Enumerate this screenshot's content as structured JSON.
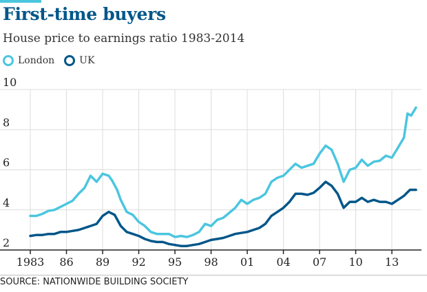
{
  "chart_data": {
    "type": "line",
    "title": "First-time buyers",
    "subtitle": "House price to earnings ratio 1983-2014",
    "source": "SOURCE: NATIONWIDE BUILDING SOCIETY",
    "xlim": [
      1983,
      2015
    ],
    "ylim": [
      2,
      10
    ],
    "grid": true,
    "legend_position": "top-left",
    "x_ticks": [
      {
        "value": 1983,
        "label": "1983"
      },
      {
        "value": 1986,
        "label": "86"
      },
      {
        "value": 1989,
        "label": "89"
      },
      {
        "value": 1992,
        "label": "92"
      },
      {
        "value": 1995,
        "label": "95"
      },
      {
        "value": 1998,
        "label": "98"
      },
      {
        "value": 2001,
        "label": "01"
      },
      {
        "value": 2004,
        "label": "04"
      },
      {
        "value": 2007,
        "label": "07"
      },
      {
        "value": 2010,
        "label": "10"
      },
      {
        "value": 2013,
        "label": "13"
      }
    ],
    "y_ticks": [
      {
        "value": 2,
        "label": "2"
      },
      {
        "value": 4,
        "label": "4"
      },
      {
        "value": 6,
        "label": "6"
      },
      {
        "value": 8,
        "label": "8"
      },
      {
        "value": 10,
        "label": "10"
      }
    ],
    "series": [
      {
        "name": "London",
        "color": "#4bc6df",
        "points": [
          [
            1983.0,
            3.7
          ],
          [
            1983.5,
            3.7
          ],
          [
            1984.0,
            3.8
          ],
          [
            1984.5,
            3.95
          ],
          [
            1985.0,
            4.0
          ],
          [
            1985.5,
            4.15
          ],
          [
            1986.0,
            4.3
          ],
          [
            1986.5,
            4.45
          ],
          [
            1987.0,
            4.8
          ],
          [
            1987.5,
            5.1
          ],
          [
            1988.0,
            5.7
          ],
          [
            1988.5,
            5.4
          ],
          [
            1989.0,
            5.8
          ],
          [
            1989.5,
            5.7
          ],
          [
            1989.8,
            5.45
          ],
          [
            1990.2,
            5.0
          ],
          [
            1990.5,
            4.5
          ],
          [
            1991.0,
            3.9
          ],
          [
            1991.5,
            3.75
          ],
          [
            1992.0,
            3.4
          ],
          [
            1992.5,
            3.2
          ],
          [
            1993.0,
            2.9
          ],
          [
            1993.5,
            2.8
          ],
          [
            1994.0,
            2.8
          ],
          [
            1994.5,
            2.8
          ],
          [
            1995.0,
            2.65
          ],
          [
            1995.5,
            2.7
          ],
          [
            1996.0,
            2.65
          ],
          [
            1996.5,
            2.75
          ],
          [
            1997.0,
            2.9
          ],
          [
            1997.5,
            3.3
          ],
          [
            1998.0,
            3.2
          ],
          [
            1998.5,
            3.5
          ],
          [
            1999.0,
            3.6
          ],
          [
            1999.5,
            3.85
          ],
          [
            2000.0,
            4.1
          ],
          [
            2000.5,
            4.5
          ],
          [
            2001.0,
            4.3
          ],
          [
            2001.5,
            4.5
          ],
          [
            2002.0,
            4.6
          ],
          [
            2002.5,
            4.8
          ],
          [
            2003.0,
            5.4
          ],
          [
            2003.5,
            5.6
          ],
          [
            2004.0,
            5.7
          ],
          [
            2004.5,
            6.0
          ],
          [
            2005.0,
            6.3
          ],
          [
            2005.5,
            6.1
          ],
          [
            2006.0,
            6.2
          ],
          [
            2006.5,
            6.3
          ],
          [
            2007.0,
            6.8
          ],
          [
            2007.5,
            7.2
          ],
          [
            2008.0,
            7.0
          ],
          [
            2008.5,
            6.3
          ],
          [
            2009.0,
            5.4
          ],
          [
            2009.5,
            6.0
          ],
          [
            2010.0,
            6.1
          ],
          [
            2010.5,
            6.5
          ],
          [
            2011.0,
            6.2
          ],
          [
            2011.5,
            6.4
          ],
          [
            2012.0,
            6.45
          ],
          [
            2012.5,
            6.7
          ],
          [
            2013.0,
            6.6
          ],
          [
            2013.5,
            7.1
          ],
          [
            2014.0,
            7.6
          ],
          [
            2014.3,
            8.8
          ],
          [
            2014.6,
            8.7
          ],
          [
            2015.0,
            9.1
          ]
        ]
      },
      {
        "name": "UK",
        "color": "#005689",
        "points": [
          [
            1983.0,
            2.7
          ],
          [
            1983.5,
            2.75
          ],
          [
            1984.0,
            2.75
          ],
          [
            1984.5,
            2.8
          ],
          [
            1985.0,
            2.8
          ],
          [
            1985.5,
            2.9
          ],
          [
            1986.0,
            2.9
          ],
          [
            1986.5,
            2.95
          ],
          [
            1987.0,
            3.0
          ],
          [
            1987.5,
            3.1
          ],
          [
            1988.0,
            3.2
          ],
          [
            1988.5,
            3.3
          ],
          [
            1989.0,
            3.7
          ],
          [
            1989.5,
            3.9
          ],
          [
            1990.0,
            3.75
          ],
          [
            1990.5,
            3.2
          ],
          [
            1991.0,
            2.9
          ],
          [
            1991.5,
            2.8
          ],
          [
            1992.0,
            2.7
          ],
          [
            1992.5,
            2.55
          ],
          [
            1993.0,
            2.45
          ],
          [
            1993.5,
            2.4
          ],
          [
            1994.0,
            2.4
          ],
          [
            1994.5,
            2.3
          ],
          [
            1995.0,
            2.25
          ],
          [
            1995.5,
            2.2
          ],
          [
            1996.0,
            2.2
          ],
          [
            1996.5,
            2.25
          ],
          [
            1997.0,
            2.3
          ],
          [
            1997.5,
            2.4
          ],
          [
            1998.0,
            2.5
          ],
          [
            1998.5,
            2.55
          ],
          [
            1999.0,
            2.6
          ],
          [
            1999.5,
            2.7
          ],
          [
            2000.0,
            2.8
          ],
          [
            2000.5,
            2.85
          ],
          [
            2001.0,
            2.9
          ],
          [
            2001.5,
            3.0
          ],
          [
            2002.0,
            3.1
          ],
          [
            2002.5,
            3.3
          ],
          [
            2003.0,
            3.7
          ],
          [
            2003.5,
            3.9
          ],
          [
            2004.0,
            4.1
          ],
          [
            2004.5,
            4.4
          ],
          [
            2005.0,
            4.8
          ],
          [
            2005.5,
            4.8
          ],
          [
            2006.0,
            4.75
          ],
          [
            2006.5,
            4.85
          ],
          [
            2007.0,
            5.1
          ],
          [
            2007.5,
            5.4
          ],
          [
            2008.0,
            5.2
          ],
          [
            2008.5,
            4.8
          ],
          [
            2009.0,
            4.1
          ],
          [
            2009.5,
            4.4
          ],
          [
            2010.0,
            4.4
          ],
          [
            2010.5,
            4.6
          ],
          [
            2011.0,
            4.4
          ],
          [
            2011.5,
            4.5
          ],
          [
            2012.0,
            4.4
          ],
          [
            2012.5,
            4.4
          ],
          [
            2013.0,
            4.3
          ],
          [
            2013.5,
            4.5
          ],
          [
            2014.0,
            4.7
          ],
          [
            2014.5,
            5.0
          ],
          [
            2015.0,
            5.0
          ]
        ]
      }
    ]
  }
}
